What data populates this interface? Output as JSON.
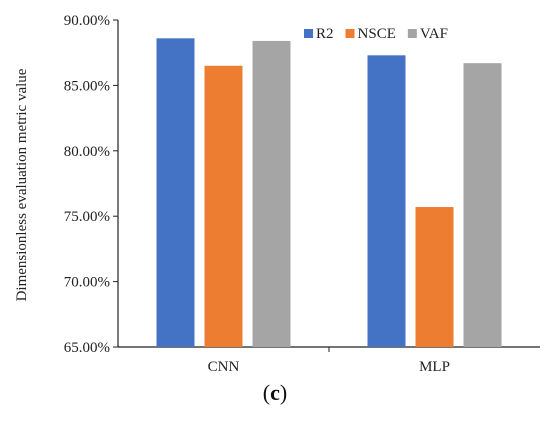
{
  "panel_label": {
    "open": "(",
    "letter": "c",
    "close": ")"
  },
  "chart_data": {
    "type": "bar",
    "title": "",
    "xlabel": "",
    "ylabel": "Dimensionless evaluation metric value",
    "categories": [
      "CNN",
      "MLP"
    ],
    "series": [
      {
        "name": "R2",
        "color": "#4472C4",
        "values": [
          88.6,
          87.3
        ]
      },
      {
        "name": "NSCE",
        "color": "#ED7D31",
        "values": [
          86.5,
          75.7
        ]
      },
      {
        "name": "VAF",
        "color": "#A5A5A5",
        "values": [
          88.4,
          86.7
        ]
      }
    ],
    "ylim": [
      65,
      90
    ],
    "yticks": [
      65,
      70,
      75,
      80,
      85,
      90
    ],
    "ytick_labels": [
      "65.00%",
      "70.00%",
      "75.00%",
      "80.00%",
      "85.00%",
      "90.00%"
    ],
    "grid": false,
    "legend_position": "top-right"
  }
}
